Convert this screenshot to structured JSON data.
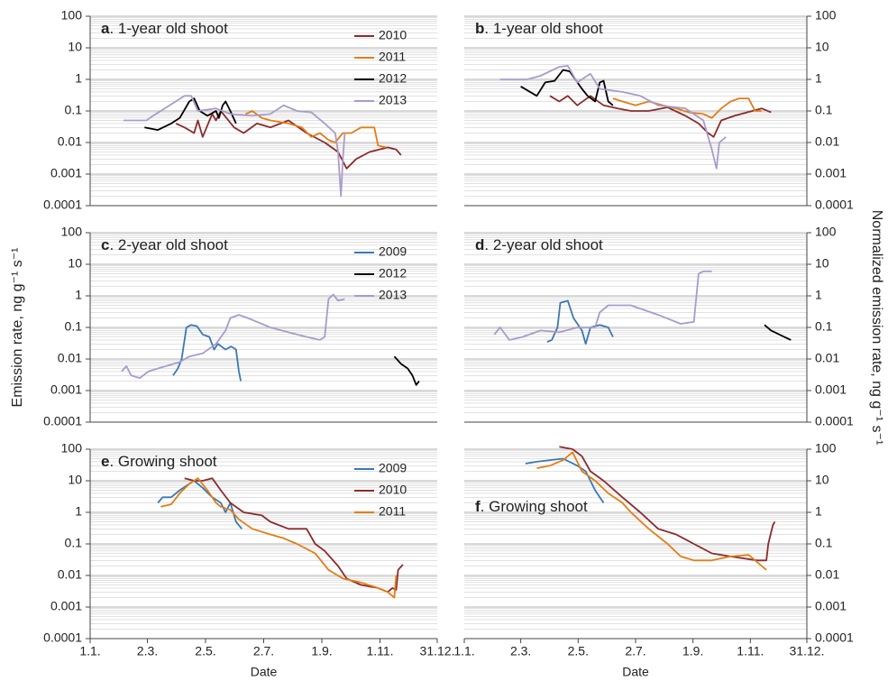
{
  "chart_data": [
    {
      "type": "line",
      "panel": "a",
      "title": ". 1-year old shoot",
      "title_position": "top-left",
      "yscale": "log",
      "yaxis_side": "left",
      "legend": true,
      "grid": true,
      "xlim": [
        1,
        365
      ],
      "ylim": [
        0.0001,
        100
      ],
      "yticks": [
        0.0001,
        0.001,
        0.01,
        0.1,
        1,
        10,
        100
      ],
      "series": [
        {
          "name": "2010",
          "color": "#8b2b2d",
          "x": [
            91,
            100,
            110,
            114,
            119,
            129,
            133,
            138,
            152,
            162,
            176,
            190,
            209,
            228,
            247,
            261,
            270,
            280,
            294,
            313,
            322,
            327
          ],
          "values": [
            0.04,
            0.03,
            0.02,
            0.05,
            0.015,
            0.08,
            0.05,
            0.1,
            0.03,
            0.02,
            0.04,
            0.03,
            0.05,
            0.02,
            0.01,
            0.005,
            0.0015,
            0.003,
            0.005,
            0.007,
            0.006,
            0.004
          ]
        },
        {
          "name": "2011",
          "color": "#e47d12",
          "x": [
            164,
            171,
            181,
            190,
            209,
            223,
            233,
            242,
            251,
            258,
            266,
            275,
            285,
            299,
            303,
            311
          ],
          "values": [
            0.08,
            0.1,
            0.06,
            0.05,
            0.04,
            0.03,
            0.015,
            0.02,
            0.012,
            0.01,
            0.02,
            0.02,
            0.03,
            0.03,
            0.008,
            0.007
          ]
        },
        {
          "name": "2012",
          "color": "#000000",
          "x": [
            58,
            72,
            86,
            95,
            105,
            110,
            116,
            124,
            133,
            136,
            140,
            143,
            148,
            154
          ],
          "values": [
            0.03,
            0.025,
            0.04,
            0.06,
            0.2,
            0.25,
            0.1,
            0.07,
            0.1,
            0.06,
            0.15,
            0.2,
            0.1,
            0.04
          ]
        },
        {
          "name": "2013",
          "color": "#a99bcb",
          "x": [
            36,
            60,
            67,
            100,
            107,
            114,
            133,
            148,
            171,
            190,
            204,
            218,
            233,
            247,
            258,
            261,
            264,
            266,
            268
          ],
          "values": [
            0.05,
            0.05,
            0.07,
            0.3,
            0.3,
            0.1,
            0.12,
            0.08,
            0.07,
            0.08,
            0.15,
            0.1,
            0.09,
            0.04,
            0.02,
            0.005,
            0.0002,
            0.003,
            0.02
          ]
        }
      ]
    },
    {
      "type": "line",
      "panel": "b",
      "title": ". 1-year old shoot",
      "title_position": "top-left",
      "yscale": "log",
      "yaxis_side": "right",
      "legend": false,
      "grid": true,
      "xlim": [
        1,
        365
      ],
      "ylim": [
        0.0001,
        100
      ],
      "yticks": [
        0.0001,
        0.001,
        0.01,
        0.1,
        1,
        10,
        100
      ],
      "series": [
        {
          "color": "#8b2b2d",
          "x": [
            92,
            102,
            111,
            121,
            135,
            149,
            164,
            178,
            197,
            217,
            236,
            250,
            260,
            266,
            274,
            288,
            307,
            317,
            327
          ],
          "values": [
            0.3,
            0.2,
            0.3,
            0.15,
            0.3,
            0.15,
            0.12,
            0.1,
            0.1,
            0.13,
            0.07,
            0.04,
            0.02,
            0.015,
            0.05,
            0.07,
            0.1,
            0.12,
            0.09
          ]
        },
        {
          "color": "#e47d12",
          "x": [
            159,
            169,
            183,
            197,
            212,
            226,
            240,
            255,
            264,
            274,
            284,
            293,
            303,
            310,
            317
          ],
          "values": [
            0.25,
            0.2,
            0.15,
            0.2,
            0.15,
            0.12,
            0.09,
            0.08,
            0.06,
            0.12,
            0.2,
            0.25,
            0.25,
            0.1,
            0.1
          ]
        },
        {
          "color": "#000000",
          "x": [
            61,
            78,
            87,
            97,
            106,
            113,
            126,
            132,
            140,
            145,
            149,
            154,
            159
          ],
          "values": [
            0.6,
            0.3,
            0.8,
            0.9,
            2,
            1.8,
            0.5,
            0.3,
            0.2,
            0.8,
            0.9,
            0.2,
            0.15
          ]
        },
        {
          "color": "#a99bcb",
          "x": [
            39,
            68,
            82,
            102,
            111,
            121,
            135,
            145,
            169,
            188,
            207,
            236,
            255,
            264,
            269,
            272,
            279
          ],
          "values": [
            1,
            1,
            1.3,
            2.5,
            2.7,
            0.8,
            1.5,
            0.5,
            0.4,
            0.3,
            0.15,
            0.12,
            0.05,
            0.006,
            0.0015,
            0.01,
            0.015
          ]
        }
      ]
    },
    {
      "type": "line",
      "panel": "c",
      "title": ". 2-year old shoot",
      "title_position": "top-left",
      "yscale": "log",
      "yaxis_side": "left",
      "legend": true,
      "grid": true,
      "ylabel": "Emission rate, ng g⁻¹ s⁻¹",
      "xlim": [
        1,
        365
      ],
      "ylim": [
        0.0001,
        100
      ],
      "yticks": [
        0.0001,
        0.001,
        0.01,
        0.1,
        1,
        10,
        100
      ],
      "series": [
        {
          "name": "2009",
          "color": "#3b78b4",
          "x": [
            88,
            93,
            97,
            102,
            107,
            113,
            119,
            126,
            131,
            135,
            143,
            149,
            154,
            157,
            159
          ],
          "values": [
            0.003,
            0.005,
            0.01,
            0.1,
            0.12,
            0.11,
            0.06,
            0.05,
            0.02,
            0.03,
            0.02,
            0.025,
            0.02,
            0.004,
            0.002
          ]
        },
        {
          "name": "2012",
          "color": "#000000",
          "x": [
            320,
            327,
            334,
            339,
            343,
            346
          ],
          "values": [
            0.012,
            0.007,
            0.005,
            0.003,
            0.0015,
            0.002
          ]
        },
        {
          "name": "2013",
          "color": "#a99bcb",
          "x": [
            34,
            39,
            44,
            53,
            62,
            72,
            81,
            95,
            105,
            119,
            133,
            143,
            148,
            157,
            166,
            176,
            190,
            209,
            228,
            242,
            247,
            251,
            256,
            261,
            268
          ],
          "values": [
            0.004,
            0.006,
            0.003,
            0.0025,
            0.004,
            0.005,
            0.006,
            0.008,
            0.012,
            0.015,
            0.03,
            0.08,
            0.2,
            0.25,
            0.2,
            0.15,
            0.1,
            0.07,
            0.05,
            0.04,
            0.05,
            0.8,
            1.1,
            0.7,
            0.8
          ]
        }
      ]
    },
    {
      "type": "line",
      "panel": "d",
      "title": ". 2-year old shoot",
      "title_position": "top-left",
      "yscale": "log",
      "yaxis_side": "right",
      "legend": false,
      "grid": true,
      "ylabel": "Normalized emission rate, ng g⁻¹ s⁻¹",
      "xlim": [
        1,
        365
      ],
      "ylim": [
        0.0001,
        100
      ],
      "yticks": [
        0.0001,
        0.001,
        0.01,
        0.1,
        1,
        10,
        100
      ],
      "series": [
        {
          "color": "#3b78b4",
          "x": [
            89,
            94,
            100,
            103,
            111,
            117,
            126,
            130,
            135,
            145,
            154,
            159
          ],
          "values": [
            0.035,
            0.04,
            0.1,
            0.6,
            0.7,
            0.2,
            0.08,
            0.03,
            0.1,
            0.12,
            0.1,
            0.05
          ]
        },
        {
          "color": "#000000",
          "x": [
            320,
            327,
            331,
            341,
            348
          ],
          "values": [
            0.12,
            0.08,
            0.07,
            0.05,
            0.04
          ]
        },
        {
          "color": "#a99bcb",
          "x": [
            33,
            39,
            49,
            63,
            82,
            102,
            121,
            140,
            145,
            154,
            178,
            207,
            231,
            245,
            250,
            255,
            264
          ],
          "values": [
            0.06,
            0.1,
            0.04,
            0.05,
            0.08,
            0.07,
            0.1,
            0.1,
            0.3,
            0.5,
            0.5,
            0.25,
            0.13,
            0.15,
            5,
            6,
            6
          ]
        }
      ]
    },
    {
      "type": "line",
      "panel": "e",
      "title": ". Growing shoot",
      "title_position": "top-left",
      "yscale": "log",
      "yaxis_side": "left",
      "legend": true,
      "grid": true,
      "xlabel": "Date",
      "xlim": [
        1,
        365
      ],
      "ylim": [
        0.0001,
        100
      ],
      "yticks": [
        0.0001,
        0.001,
        0.01,
        0.1,
        1,
        10,
        100
      ],
      "xticks": [
        {
          "value": 1,
          "label": "1.1."
        },
        {
          "value": 61,
          "label": "2.3."
        },
        {
          "value": 122,
          "label": "2.5."
        },
        {
          "value": 183,
          "label": "2.7."
        },
        {
          "value": 244,
          "label": "1.9."
        },
        {
          "value": 305,
          "label": "1.11."
        },
        {
          "value": 365,
          "label": "31.12."
        }
      ],
      "series": [
        {
          "name": "2009",
          "color": "#3b78b4",
          "x": [
            72,
            77,
            86,
            95,
            105,
            110,
            119,
            129,
            138,
            143,
            148,
            154,
            160
          ],
          "values": [
            2,
            3,
            3,
            5,
            8,
            10,
            6,
            3,
            2,
            1,
            2,
            0.5,
            0.3
          ]
        },
        {
          "name": "2010",
          "color": "#8b2b2d",
          "x": [
            100,
            110,
            119,
            129,
            138,
            148,
            162,
            181,
            190,
            209,
            228,
            237,
            247,
            261,
            270,
            285,
            303,
            313,
            318,
            322,
            324,
            329
          ],
          "values": [
            12,
            10,
            10,
            12,
            5,
            2,
            1,
            0.8,
            0.5,
            0.3,
            0.3,
            0.1,
            0.06,
            0.02,
            0.008,
            0.005,
            0.004,
            0.003,
            0.004,
            0.0035,
            0.015,
            0.022
          ]
        },
        {
          "name": "2011",
          "color": "#e47d12",
          "x": [
            75,
            86,
            95,
            105,
            114,
            124,
            133,
            138,
            148,
            157,
            171,
            190,
            204,
            218,
            237,
            251,
            266,
            285,
            303,
            313,
            320,
            322
          ],
          "values": [
            1.5,
            1.8,
            4,
            8,
            12,
            5,
            2,
            1.5,
            1.2,
            0.6,
            0.3,
            0.2,
            0.15,
            0.1,
            0.05,
            0.015,
            0.008,
            0.006,
            0.004,
            0.003,
            0.002,
            0.01
          ]
        }
      ]
    },
    {
      "type": "line",
      "panel": "f",
      "title": ". Growing shoot",
      "title_position": "middle-left",
      "yscale": "log",
      "yaxis_side": "right",
      "legend": false,
      "grid": true,
      "xlabel": "Date",
      "xlim": [
        1,
        365
      ],
      "ylim": [
        0.0001,
        100
      ],
      "yticks": [
        0.0001,
        0.001,
        0.01,
        0.1,
        1,
        10,
        100
      ],
      "xticks": [
        {
          "value": 1,
          "label": "1.1."
        },
        {
          "value": 61,
          "label": "2.3."
        },
        {
          "value": 122,
          "label": "2.5."
        },
        {
          "value": 183,
          "label": "2.7."
        },
        {
          "value": 244,
          "label": "1.9."
        },
        {
          "value": 305,
          "label": "1.11."
        },
        {
          "value": 365,
          "label": "31.12."
        }
      ],
      "series": [
        {
          "color": "#3b78b4",
          "x": [
            66,
            78,
            92,
            106,
            121,
            130,
            140,
            149
          ],
          "values": [
            35,
            40,
            45,
            50,
            30,
            20,
            5,
            2
          ]
        },
        {
          "color": "#8b2b2d",
          "x": [
            102,
            116,
            126,
            135,
            149,
            169,
            188,
            207,
            226,
            245,
            264,
            284,
            312,
            322,
            324,
            329,
            331
          ],
          "values": [
            120,
            100,
            60,
            20,
            10,
            3,
            1,
            0.3,
            0.2,
            0.1,
            0.05,
            0.04,
            0.03,
            0.03,
            0.1,
            0.4,
            0.5
          ]
        },
        {
          "color": "#e47d12",
          "x": [
            78,
            92,
            106,
            116,
            126,
            140,
            154,
            169,
            178,
            197,
            217,
            231,
            245,
            264,
            284,
            303,
            317,
            322
          ],
          "values": [
            25,
            30,
            45,
            80,
            20,
            10,
            4,
            2,
            1,
            0.3,
            0.1,
            0.04,
            0.03,
            0.03,
            0.04,
            0.045,
            0.02,
            0.015
          ]
        }
      ]
    }
  ]
}
